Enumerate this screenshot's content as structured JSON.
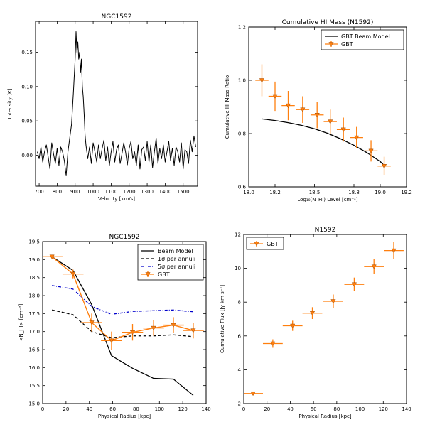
{
  "chart_data": [
    {
      "id": "p1",
      "type": "line",
      "title": "NGC1592",
      "xlabel": "Velocity [km/s]",
      "ylabel": "Intensity [K]",
      "xlim": [
        680,
        1580
      ],
      "ylim": [
        -0.045,
        0.195
      ],
      "xticks": [
        700,
        800,
        900,
        1000,
        1100,
        1200,
        1300,
        1400,
        1500
      ],
      "yticks": [
        0.0,
        0.05,
        0.1,
        0.15
      ],
      "ytick_labels": [
        "0.00",
        "0.05",
        "0.10",
        "0.15"
      ],
      "series": [
        {
          "color": "#000000",
          "x": [
            690,
            700,
            710,
            720,
            730,
            740,
            750,
            760,
            770,
            780,
            790,
            800,
            810,
            820,
            830,
            840,
            850,
            860,
            870,
            880,
            890,
            900,
            905,
            910,
            915,
            920,
            925,
            930,
            935,
            940,
            945,
            950,
            955,
            960,
            970,
            980,
            990,
            1000,
            1010,
            1020,
            1030,
            1040,
            1050,
            1060,
            1070,
            1080,
            1090,
            1100,
            1110,
            1120,
            1130,
            1140,
            1150,
            1160,
            1170,
            1180,
            1190,
            1200,
            1210,
            1220,
            1230,
            1240,
            1250,
            1260,
            1270,
            1280,
            1290,
            1300,
            1310,
            1320,
            1330,
            1340,
            1350,
            1360,
            1370,
            1380,
            1390,
            1400,
            1410,
            1420,
            1430,
            1440,
            1450,
            1460,
            1470,
            1480,
            1490,
            1500,
            1510,
            1520,
            1530,
            1540,
            1550,
            1560,
            1570
          ],
          "y": [
            0.005,
            -0.005,
            0.012,
            -0.01,
            0.005,
            0.015,
            -0.002,
            -0.02,
            0.018,
            0.002,
            -0.012,
            0.01,
            -0.015,
            0.012,
            0.005,
            -0.008,
            -0.03,
            0.005,
            0.025,
            0.045,
            0.09,
            0.14,
            0.18,
            0.15,
            0.165,
            0.14,
            0.15,
            0.12,
            0.14,
            0.1,
            0.085,
            0.06,
            0.03,
            0.015,
            -0.005,
            0.012,
            -0.012,
            0.018,
            0.005,
            -0.01,
            0.015,
            -0.005,
            0.01,
            0.022,
            -0.008,
            0.012,
            -0.015,
            0.005,
            0.02,
            -0.01,
            0.008,
            0.015,
            -0.012,
            0.002,
            0.018,
            0.005,
            -0.014,
            0.01,
            0.02,
            -0.005,
            0.005,
            -0.015,
            0.015,
            -0.02,
            0.008,
            0.012,
            -0.008,
            0.02,
            -0.01,
            0.015,
            -0.018,
            0.005,
            0.025,
            -0.012,
            0.01,
            -0.005,
            0.015,
            -0.01,
            0.005,
            0.02,
            -0.008,
            0.01,
            -0.015,
            0.012,
            0.005,
            -0.01,
            0.018,
            -0.02,
            0.008,
            0.005,
            -0.012,
            0.022,
            0.005,
            0.028,
            0.012
          ]
        }
      ]
    },
    {
      "id": "p2",
      "type": "scatter",
      "title": "Cumulative HI Mass (N1592)",
      "xlabel": "Log₁₀(N_HI) Level [cm⁻²]",
      "ylabel": "Cumulative HI Mass Ratio",
      "xlim": [
        18.0,
        19.2
      ],
      "ylim": [
        0.6,
        1.2
      ],
      "xticks": [
        18.0,
        18.2,
        18.5,
        18.8,
        19.0,
        19.2
      ],
      "xtick_labels": [
        "18.0",
        "18.2",
        "18.5",
        "18.8",
        "19.0",
        "19.2"
      ],
      "yticks": [
        0.6,
        0.8,
        1.0,
        1.2
      ],
      "ytick_labels": [
        "0.6",
        "0.8",
        "1.0",
        "1.2"
      ],
      "legend": {
        "placement": "top-right",
        "entries": [
          "GBT Beam Model",
          "GBT"
        ]
      },
      "series": [
        {
          "name": "GBT Beam Model",
          "style": "line",
          "color": "#000000",
          "x": [
            18.1,
            18.2,
            18.3,
            18.4,
            18.5,
            18.6,
            18.7,
            18.8,
            18.9,
            19.0,
            19.03
          ],
          "y": [
            0.855,
            0.849,
            0.841,
            0.831,
            0.818,
            0.801,
            0.78,
            0.756,
            0.728,
            0.695,
            0.68
          ]
        },
        {
          "name": "GBT",
          "style": "errorbar",
          "color": "#ff7f0e",
          "x": [
            18.1,
            18.2,
            18.3,
            18.41,
            18.52,
            18.62,
            18.72,
            18.82,
            18.93,
            19.03
          ],
          "y": [
            1.0,
            0.94,
            0.905,
            0.89,
            0.87,
            0.845,
            0.815,
            0.785,
            0.735,
            0.678
          ],
          "xerr": [
            0.05,
            0.05,
            0.05,
            0.05,
            0.05,
            0.05,
            0.05,
            0.05,
            0.05,
            0.05
          ],
          "yerr": [
            0.06,
            0.055,
            0.055,
            0.05,
            0.05,
            0.045,
            0.045,
            0.04,
            0.04,
            0.035
          ]
        }
      ]
    },
    {
      "id": "p3",
      "type": "line",
      "title": "NGC1592",
      "xlabel": "Physical Radius [kpc]",
      "ylabel": "<N_HI> [cm⁻²]",
      "xlim": [
        0,
        140
      ],
      "ylim": [
        15.0,
        19.5
      ],
      "xticks": [
        0,
        20,
        40,
        60,
        80,
        100,
        120,
        140
      ],
      "yticks": [
        15.0,
        15.5,
        16.0,
        16.5,
        17.0,
        17.5,
        18.0,
        18.5,
        19.0,
        19.5
      ],
      "ytick_labels": [
        "15.0",
        "15.5",
        "16.0",
        "16.5",
        "17.0",
        "17.5",
        "18.0",
        "18.5",
        "19.0",
        "19.5"
      ],
      "legend": {
        "placement": "top-right",
        "entries": [
          "Beam Model",
          "1σ per annuli",
          "5σ per annuli",
          "GBT"
        ]
      },
      "series": [
        {
          "name": "Beam Model",
          "style": "line",
          "color": "#000000",
          "x": [
            8,
            26,
            42,
            59,
            77,
            95,
            112,
            129
          ],
          "y": [
            19.08,
            18.7,
            17.75,
            16.33,
            15.98,
            15.7,
            15.68,
            15.23
          ]
        },
        {
          "name": "1σ per annuli",
          "style": "dashed",
          "color": "#000000",
          "x": [
            8,
            26,
            42,
            59,
            77,
            95,
            112,
            129
          ],
          "y": [
            17.6,
            17.47,
            17.0,
            16.83,
            16.88,
            16.88,
            16.91,
            16.86
          ]
        },
        {
          "name": "5σ per annuli",
          "style": "dashdot",
          "color": "#0000cc",
          "x": [
            8,
            26,
            42,
            59,
            77,
            95,
            112,
            129
          ],
          "y": [
            18.28,
            18.18,
            17.7,
            17.48,
            17.56,
            17.58,
            17.6,
            17.55
          ]
        },
        {
          "name": "GBT",
          "style": "errorbar",
          "color": "#ff7f0e",
          "x": [
            8,
            26,
            42,
            59,
            77,
            95,
            112,
            129
          ],
          "y": [
            19.08,
            18.6,
            17.25,
            16.75,
            16.98,
            17.1,
            17.18,
            17.03
          ],
          "xerr": [
            9,
            9,
            9,
            9,
            9,
            9,
            9,
            9
          ],
          "yerr": [
            0.05,
            0.12,
            0.25,
            0.25,
            0.23,
            0.22,
            0.22,
            0.22
          ]
        }
      ]
    },
    {
      "id": "p4",
      "type": "scatter",
      "title": "N1592",
      "xlabel": "Physical Radius [kpc]",
      "ylabel": "Cumulative Flux [Jy km s⁻¹]",
      "xlim": [
        0,
        140
      ],
      "ylim": [
        2,
        12
      ],
      "xticks": [
        0,
        20,
        40,
        60,
        80,
        100,
        120,
        140
      ],
      "yticks": [
        2,
        4,
        6,
        8,
        10,
        12
      ],
      "legend": {
        "placement": "top-left",
        "entries": [
          "GBT"
        ]
      },
      "series": [
        {
          "name": "GBT",
          "style": "errorbar",
          "color": "#ff7f0e",
          "x": [
            8,
            25,
            42,
            59,
            77,
            95,
            112,
            129
          ],
          "y": [
            2.6,
            5.55,
            6.6,
            7.35,
            8.05,
            9.05,
            10.1,
            11.05
          ],
          "xerr": [
            8.5,
            8.5,
            8.5,
            8.5,
            8.5,
            8.5,
            8.5,
            8.5
          ],
          "yerr": [
            0.1,
            0.25,
            0.3,
            0.35,
            0.4,
            0.4,
            0.45,
            0.5
          ]
        }
      ]
    }
  ]
}
